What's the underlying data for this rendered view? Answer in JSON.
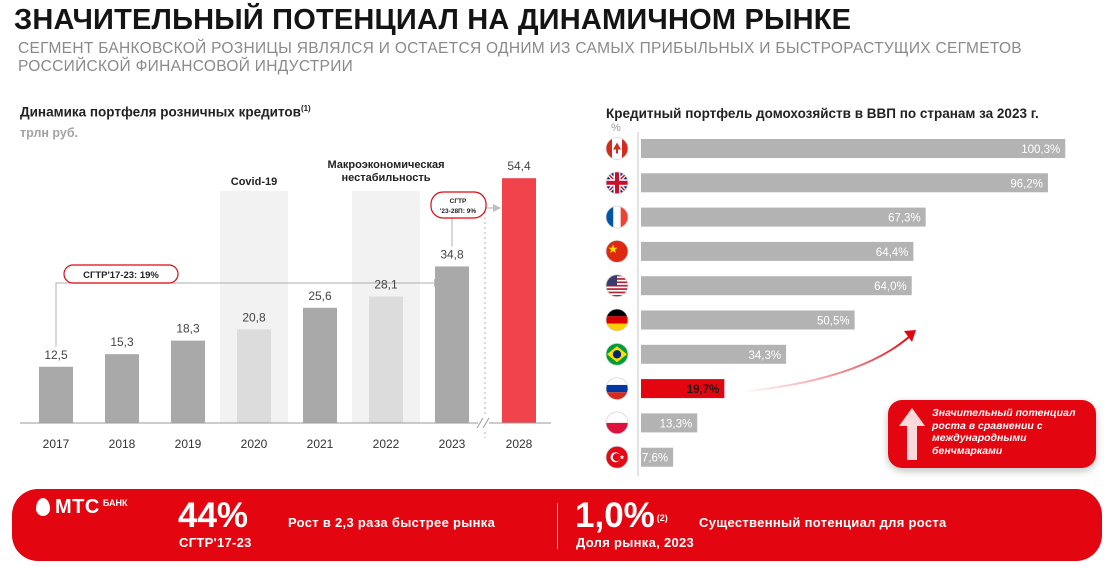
{
  "header": {
    "title": "ЗНАЧИТЕЛЬНЫЙ ПОТЕНЦИАЛ НА ДИНАМИЧНОМ РЫНКЕ",
    "subtitle": "СЕГМЕНТ БАНКОВСКОЙ РОЗНИЦЫ ЯВЛЯЛСЯ И ОСТАЕТСЯ ОДНИМ ИЗ САМЫХ ПРИБЫЛЬНЫХ И БЫСТРОРАСТУЩИХ СЕГМЕТОВ РОССИЙСКОЙ ФИНАНСОВОЙ ИНДУСТРИИ"
  },
  "left_chart": {
    "title": "Динамика портфеля розничных кредитов",
    "title_sup": "(1)",
    "unit": "трлн руб.",
    "annotations": {
      "covid": "Covid-19",
      "macro_line1": "Макроэкономическая",
      "macro_line2": "нестабильность",
      "cagr_main": "СГТР'17-23: 19%",
      "cagr_fwd_line1": "СГТР",
      "cagr_fwd_line2": "'23-28П: 9%"
    }
  },
  "right_chart": {
    "title": "Кредитный портфель домохозяйств в ВВП по странам за 2023 г.",
    "unit": "%",
    "callout": "Значительный потенциал роста в сравнении с международными бенчмарками"
  },
  "chart_data": [
    {
      "type": "bar",
      "title": "Динамика портфеля розничных кредитов",
      "ylabel": "трлн руб.",
      "categories": [
        "2017",
        "2018",
        "2019",
        "2020",
        "2021",
        "2022",
        "2023",
        "2028"
      ],
      "values": [
        12.5,
        15.3,
        18.3,
        20.8,
        25.6,
        28.1,
        34.8,
        54.4
      ],
      "labels": [
        "12,5",
        "15,3",
        "18,3",
        "20,8",
        "25,6",
        "28,1",
        "34,8",
        "54,4"
      ],
      "highlighted_years": [
        "2020",
        "2022"
      ],
      "forecast_years": [
        "2028"
      ],
      "colors": {
        "actual": "#a9a9a9",
        "muted": "#dcdcdc",
        "forecast": "#f0434b",
        "shade": "#f2f2f2"
      }
    },
    {
      "type": "bar",
      "orientation": "horizontal",
      "title": "Кредитный портфель домохозяйств в ВВП по странам за 2023 г.",
      "ylabel": "%",
      "categories": [
        "Канада",
        "Великобритания",
        "Франция",
        "Китай",
        "США",
        "Германия",
        "Бразилия",
        "Россия",
        "Польша",
        "Турция"
      ],
      "flags": [
        "canada-flag",
        "uk-flag",
        "france-flag",
        "china-flag",
        "usa-flag",
        "germany-flag",
        "brazil-flag",
        "russia-flag",
        "poland-flag",
        "turkey-flag"
      ],
      "values": [
        100.3,
        96.2,
        67.3,
        64.4,
        64.0,
        50.5,
        34.3,
        19.7,
        13.3,
        7.6
      ],
      "labels": [
        "100,3%",
        "96,2%",
        "67,3%",
        "64,4%",
        "64,0%",
        "50,5%",
        "34,3%",
        "19,7%",
        "13,3%",
        "7,6%"
      ],
      "highlighted": "Россия",
      "colors": {
        "bar": "#b3b3b3",
        "highlight": "#e30611"
      }
    }
  ],
  "banner": {
    "logo_text": "МТС",
    "logo_bank": "БАНК",
    "stat1_value": "44%",
    "stat1_label": "СГТР'17-23",
    "stat1_desc": "Рост в 2,3 раза быстрее рынка",
    "stat2_value": "1,0%",
    "stat2_sup": "(2)",
    "stat2_label": "Доля рынка, 2023",
    "stat2_desc": "Существенный потенциал для роста"
  }
}
